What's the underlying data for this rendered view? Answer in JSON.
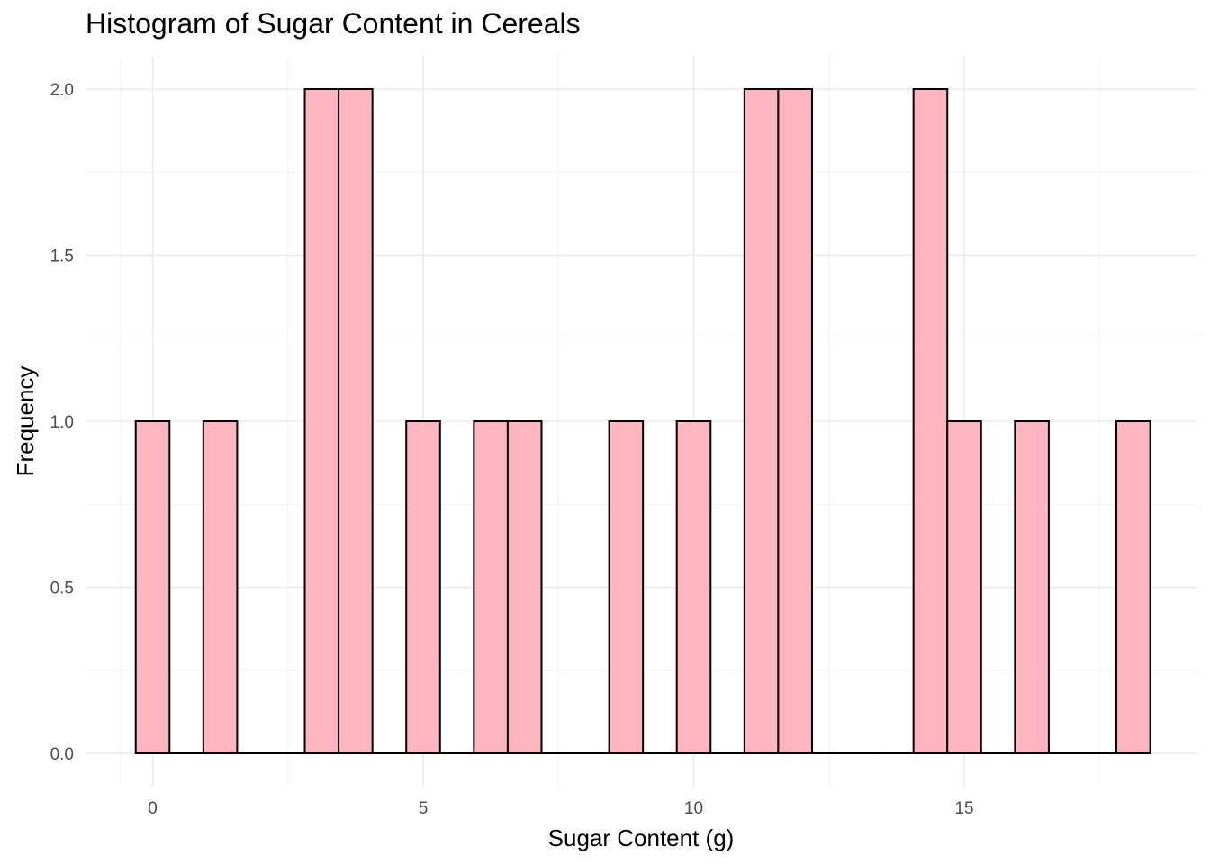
{
  "chart_data": {
    "type": "histogram",
    "title": "Histogram of Sugar Content in Cereals",
    "xlabel": "Sugar Content (g)",
    "ylabel": "Frequency",
    "bar_color": "#FFB6C1",
    "bar_edge_color": "#000000",
    "binwidth": 0.625,
    "xlim": [
      -0.6,
      18.8
    ],
    "ylim": [
      0,
      2.08
    ],
    "xticks": [
      0,
      5,
      10,
      15
    ],
    "xtick_labels": [
      "0",
      "5",
      "10",
      "15"
    ],
    "yticks": [
      0.0,
      0.5,
      1.0,
      1.5,
      2.0
    ],
    "ytick_labels": [
      "0.0",
      "0.5",
      "1.0",
      "1.5",
      "2.0"
    ],
    "grid": true,
    "bins": [
      {
        "x0": -0.3125,
        "x1": 0.3125,
        "count": 1
      },
      {
        "x0": 0.3125,
        "x1": 0.9375,
        "count": 0
      },
      {
        "x0": 0.9375,
        "x1": 1.5625,
        "count": 1
      },
      {
        "x0": 1.5625,
        "x1": 2.1875,
        "count": 0
      },
      {
        "x0": 2.1875,
        "x1": 2.8125,
        "count": 0
      },
      {
        "x0": 2.8125,
        "x1": 3.4375,
        "count": 2
      },
      {
        "x0": 3.4375,
        "x1": 4.0625,
        "count": 2
      },
      {
        "x0": 4.0625,
        "x1": 4.6875,
        "count": 0
      },
      {
        "x0": 4.6875,
        "x1": 5.3125,
        "count": 1
      },
      {
        "x0": 5.3125,
        "x1": 5.9375,
        "count": 0
      },
      {
        "x0": 5.9375,
        "x1": 6.5625,
        "count": 1
      },
      {
        "x0": 6.5625,
        "x1": 7.1875,
        "count": 1
      },
      {
        "x0": 7.1875,
        "x1": 7.8125,
        "count": 0
      },
      {
        "x0": 7.8125,
        "x1": 8.4375,
        "count": 0
      },
      {
        "x0": 8.4375,
        "x1": 9.0625,
        "count": 1
      },
      {
        "x0": 9.0625,
        "x1": 9.6875,
        "count": 0
      },
      {
        "x0": 9.6875,
        "x1": 10.3125,
        "count": 1
      },
      {
        "x0": 10.3125,
        "x1": 10.9375,
        "count": 0
      },
      {
        "x0": 10.9375,
        "x1": 11.5625,
        "count": 2
      },
      {
        "x0": 11.5625,
        "x1": 12.1875,
        "count": 2
      },
      {
        "x0": 12.1875,
        "x1": 12.8125,
        "count": 0
      },
      {
        "x0": 12.8125,
        "x1": 13.4375,
        "count": 0
      },
      {
        "x0": 13.4375,
        "x1": 14.0625,
        "count": 0
      },
      {
        "x0": 14.0625,
        "x1": 14.6875,
        "count": 2
      },
      {
        "x0": 14.6875,
        "x1": 15.3125,
        "count": 1
      },
      {
        "x0": 15.3125,
        "x1": 15.9375,
        "count": 0
      },
      {
        "x0": 15.9375,
        "x1": 16.5625,
        "count": 1
      },
      {
        "x0": 16.5625,
        "x1": 17.1875,
        "count": 0
      },
      {
        "x0": 17.1875,
        "x1": 17.8125,
        "count": 0
      },
      {
        "x0": 17.8125,
        "x1": 18.4375,
        "count": 1
      }
    ]
  }
}
